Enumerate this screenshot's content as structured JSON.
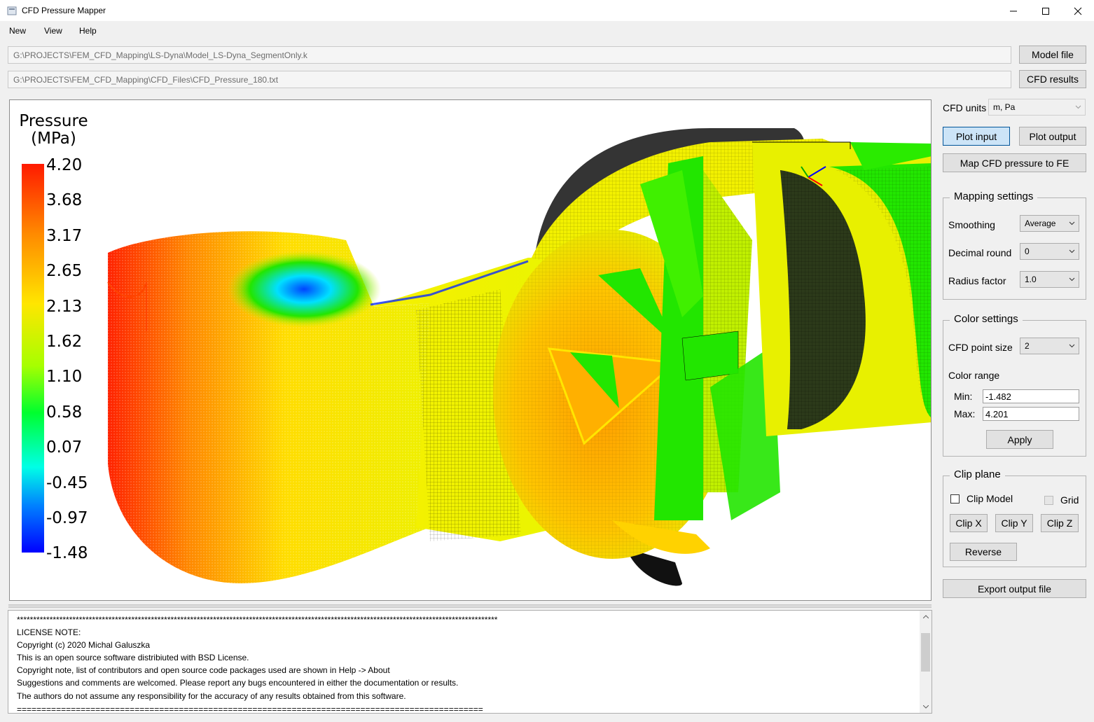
{
  "window": {
    "title": "CFD Pressure Mapper"
  },
  "menu": [
    "New",
    "View",
    "Help"
  ],
  "paths": {
    "model_file": "G:\\PROJECTS\\FEM_CFD_Mapping\\LS-Dyna\\Model_LS-Dyna_SegmentOnly.k",
    "cfd_file": "G:\\PROJECTS\\FEM_CFD_Mapping\\CFD_Files\\CFD_Pressure_180.txt"
  },
  "buttons": {
    "model_file": "Model file",
    "cfd_results": "CFD results",
    "plot_input": "Plot input",
    "plot_output": "Plot output",
    "map": "Map CFD pressure to FE",
    "apply": "Apply",
    "clip_x": "Clip X",
    "clip_y": "Clip Y",
    "clip_z": "Clip Z",
    "reverse": "Reverse",
    "export": "Export output file"
  },
  "cfd_units": {
    "label": "CFD units",
    "value": "m, Pa"
  },
  "mapping_settings": {
    "title": "Mapping settings",
    "smoothing_label": "Smoothing",
    "smoothing_value": "Average",
    "decimal_label": "Decimal round",
    "decimal_value": "0",
    "radius_label": "Radius factor",
    "radius_value": "1.0"
  },
  "color_settings": {
    "title": "Color settings",
    "point_size_label": "CFD point size",
    "point_size_value": "2",
    "range_label": "Color range",
    "min_label": "Min:",
    "min_value": "-1.482",
    "max_label": "Max:",
    "max_value": "4.201"
  },
  "clip_plane": {
    "title": "Clip plane",
    "clip_model_label": "Clip Model",
    "clip_model_checked": false,
    "grid_label": "Grid",
    "grid_checked": false
  },
  "legend": {
    "title_line1": "Pressure",
    "title_line2": "(MPa)",
    "ticks": [
      "4.20",
      "3.68",
      "3.17",
      "2.65",
      "2.13",
      "1.62",
      "1.10",
      "0.58",
      "0.07",
      "-0.45",
      "-0.97",
      "-1.48"
    ]
  },
  "colors": {
    "high": "#ff1a00",
    "mid": "#e6f000",
    "green": "#22e600",
    "low": "#0000ff",
    "mesh": "#000000"
  },
  "log": [
    "***************************************************************************************************************************************************",
    "LICENSE NOTE:",
    "Copyright (c) 2020 Michal Galuszka",
    "This is an open source software distribiuted with BSD License.",
    "Copyright note, list of contributors and open source code packages used are shown in Help -> About",
    "Suggestions and comments are welcomed. Please report any bugs encountered in either the documentation or results.",
    "The authors do not assume any responsibility for the accuracy of any results obtained from this software.",
    "==============================================================================================="
  ]
}
